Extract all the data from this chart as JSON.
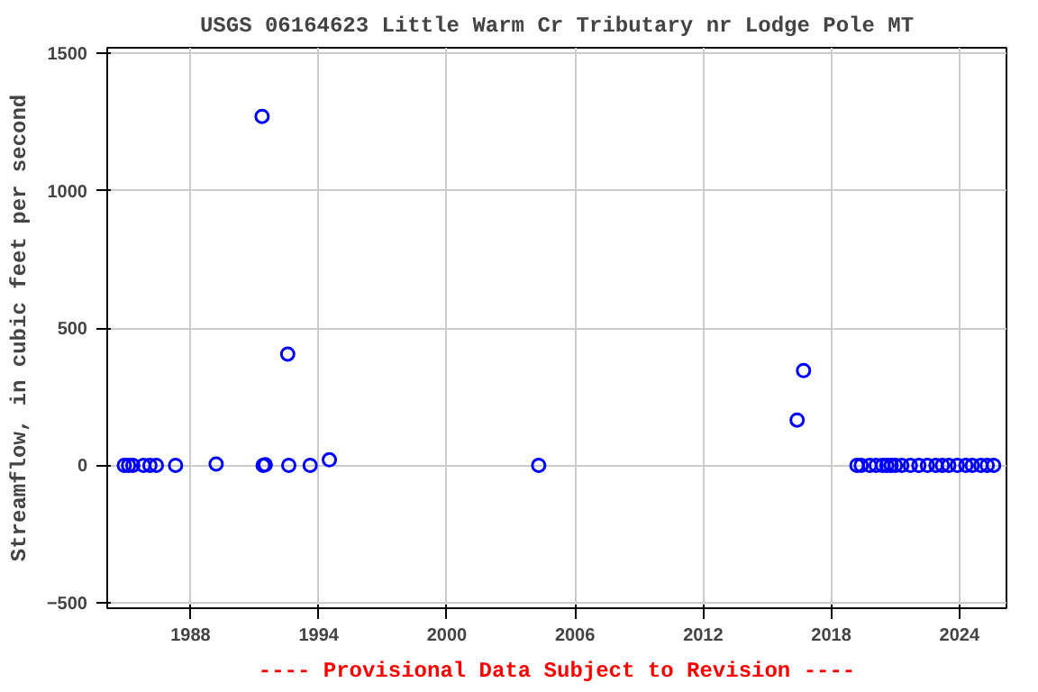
{
  "chart_data": {
    "type": "scatter",
    "title": "USGS 06164623 Little Warm Cr Tributary nr Lodge Pole MT",
    "ylabel": "Streamflow, in cubic feet per second",
    "annotations": [
      "---- Provisional Data Subject to Revision ----"
    ],
    "x": [
      1984.9,
      1985.1,
      1985.3,
      1985.8,
      1986.1,
      1986.4,
      1987.3,
      1989.2,
      1991.35,
      1991.4,
      1991.5,
      1992.55,
      1992.6,
      1993.6,
      1994.5,
      2004.3,
      2016.4,
      2016.7,
      2019.2,
      2019.4,
      2019.8,
      2020.1,
      2020.4,
      2020.6,
      2020.8,
      2021.0,
      2021.3,
      2021.7,
      2022.1,
      2022.5,
      2022.9,
      2023.2,
      2023.5,
      2023.9,
      2024.3,
      2024.6,
      2025.0,
      2025.3,
      2025.6
    ],
    "series": [
      {
        "color": "#0000ff",
        "values": [
          0,
          0,
          0,
          0,
          0,
          0,
          0,
          5,
          1270,
          0,
          2,
          405,
          0,
          0,
          20,
          0,
          165,
          345,
          0,
          0,
          0,
          0,
          0,
          0,
          0,
          0,
          0,
          0,
          0,
          0,
          0,
          0,
          0,
          0,
          0,
          0,
          0,
          0,
          0
        ]
      }
    ],
    "xlim": [
      1984.1,
      2026.2
    ],
    "ylim": [
      -520,
      1520
    ],
    "xticks": [
      1988,
      1994,
      2000,
      2006,
      2012,
      2018,
      2024
    ],
    "yticks": [
      -500,
      0,
      500,
      1000,
      1500
    ],
    "grid": true,
    "marker": "circle"
  }
}
